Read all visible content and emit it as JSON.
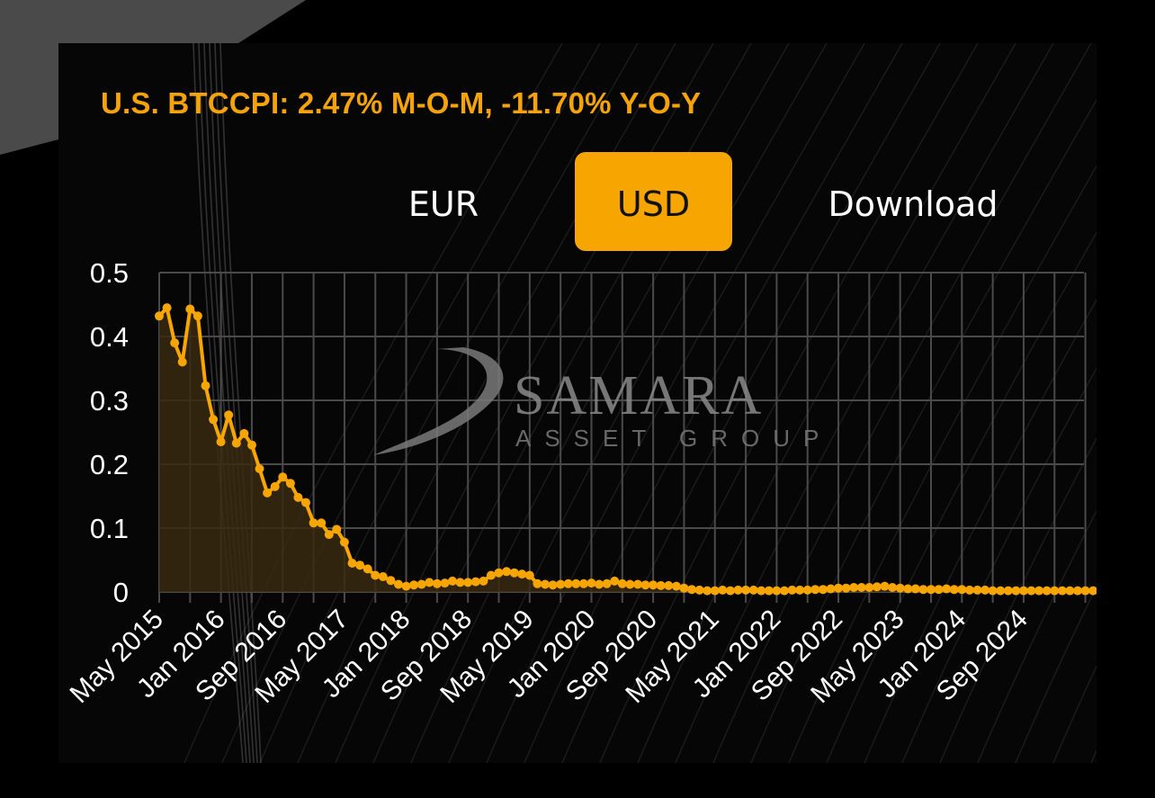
{
  "header": {
    "title": "U.S. BTCCPI: 2.47% M-O-M, -11.70% Y-O-Y"
  },
  "tabs": [
    {
      "label": "EUR",
      "active": false
    },
    {
      "label": "USD",
      "active": true
    },
    {
      "label": "Download",
      "active": false
    }
  ],
  "watermark": {
    "main": "SAMARA",
    "sub": "ASSET GROUP"
  },
  "colors": {
    "accent": "#f7a500",
    "line": "#f7a500",
    "area": "#3a2a10",
    "grid": "#4a4a4a",
    "background": "#060606"
  },
  "chart_data": {
    "type": "area",
    "title": "U.S. BTCCPI: 2.47% M-O-M, -11.70% Y-O-Y",
    "xlabel": "",
    "ylabel": "",
    "ylim": [
      0,
      0.5
    ],
    "yticks": [
      "0",
      "0.1",
      "0.2",
      "0.3",
      "0.4",
      "0.5"
    ],
    "xticks": [
      "May 2015",
      "Jan 2016",
      "Sep 2016",
      "May 2017",
      "Jan 2018",
      "Sep 2018",
      "May 2019",
      "Jan 2020",
      "Sep 2020",
      "May 2021",
      "Jan 2022",
      "Sep 2022",
      "May 2023",
      "Jan 2024",
      "Sep 2024"
    ],
    "grid": true,
    "legend": "none",
    "x_start": "May 2015",
    "x_end": "Jun 2025",
    "frequency": "monthly",
    "values": [
      0.432,
      0.445,
      0.39,
      0.36,
      0.443,
      0.432,
      0.323,
      0.27,
      0.235,
      0.277,
      0.233,
      0.248,
      0.23,
      0.193,
      0.155,
      0.165,
      0.18,
      0.17,
      0.148,
      0.14,
      0.108,
      0.108,
      0.09,
      0.098,
      0.078,
      0.045,
      0.042,
      0.036,
      0.026,
      0.024,
      0.018,
      0.012,
      0.009,
      0.011,
      0.012,
      0.015,
      0.013,
      0.014,
      0.017,
      0.015,
      0.015,
      0.016,
      0.017,
      0.026,
      0.03,
      0.032,
      0.03,
      0.028,
      0.026,
      0.013,
      0.012,
      0.011,
      0.012,
      0.013,
      0.013,
      0.013,
      0.014,
      0.012,
      0.013,
      0.017,
      0.013,
      0.012,
      0.012,
      0.011,
      0.011,
      0.01,
      0.01,
      0.009,
      0.006,
      0.004,
      0.003,
      0.002,
      0.002,
      0.003,
      0.002,
      0.003,
      0.003,
      0.003,
      0.002,
      0.002,
      0.002,
      0.002,
      0.003,
      0.003,
      0.003,
      0.004,
      0.004,
      0.005,
      0.006,
      0.006,
      0.007,
      0.007,
      0.007,
      0.008,
      0.009,
      0.007,
      0.006,
      0.005,
      0.005,
      0.004,
      0.004,
      0.004,
      0.005,
      0.004,
      0.004,
      0.003,
      0.003,
      0.003,
      0.002,
      0.002,
      0.002,
      0.002,
      0.002,
      0.002,
      0.002,
      0.002,
      0.002,
      0.002,
      0.002,
      0.002,
      0.002,
      0.002
    ]
  }
}
